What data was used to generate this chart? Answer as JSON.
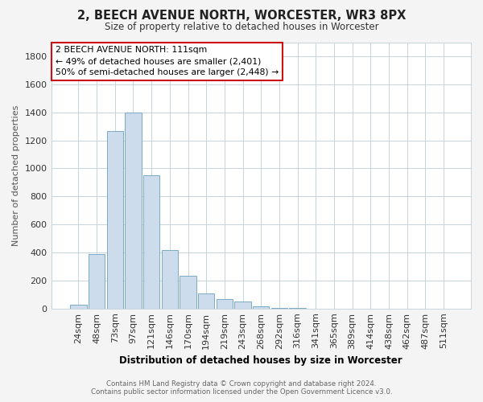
{
  "title": "2, BEECH AVENUE NORTH, WORCESTER, WR3 8PX",
  "subtitle": "Size of property relative to detached houses in Worcester",
  "xlabel": "Distribution of detached houses by size in Worcester",
  "ylabel": "Number of detached properties",
  "bar_labels": [
    "24sqm",
    "48sqm",
    "73sqm",
    "97sqm",
    "121sqm",
    "146sqm",
    "170sqm",
    "194sqm",
    "219sqm",
    "243sqm",
    "268sqm",
    "292sqm",
    "316sqm",
    "341sqm",
    "365sqm",
    "389sqm",
    "414sqm",
    "438sqm",
    "462sqm",
    "487sqm",
    "511sqm"
  ],
  "bar_values": [
    25,
    390,
    1265,
    1400,
    950,
    415,
    235,
    110,
    65,
    48,
    18,
    5,
    2,
    0,
    0,
    0,
    0,
    0,
    0,
    0,
    0
  ],
  "bar_color": "#ccdcec",
  "bar_edge_color": "#7aaac8",
  "ylim": [
    0,
    1900
  ],
  "yticks": [
    0,
    200,
    400,
    600,
    800,
    1000,
    1200,
    1400,
    1600,
    1800
  ],
  "annotation_title": "2 BEECH AVENUE NORTH: 111sqm",
  "annotation_line1": "← 49% of detached houses are smaller (2,401)",
  "annotation_line2": "50% of semi-detached houses are larger (2,448) →",
  "footer_line1": "Contains HM Land Registry data © Crown copyright and database right 2024.",
  "footer_line2": "Contains public sector information licensed under the Open Government Licence v3.0.",
  "bg_color": "#f4f4f4",
  "plot_bg_color": "#ffffff",
  "grid_color": "#c8d4dc"
}
